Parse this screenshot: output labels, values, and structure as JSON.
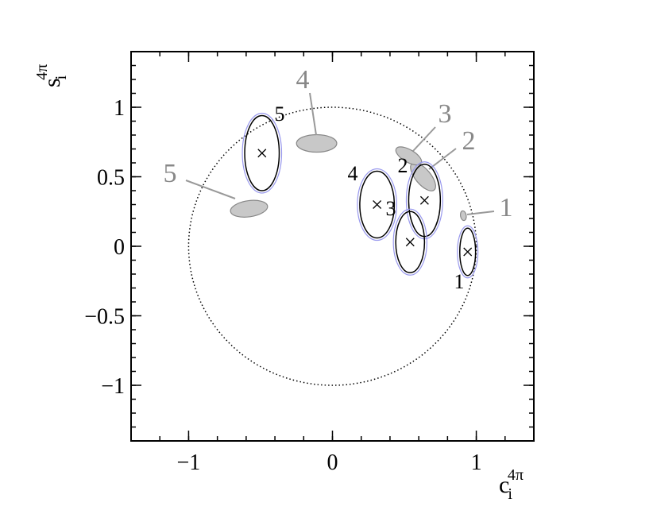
{
  "chart_data": {
    "type": "ellipse",
    "xlabel": {
      "base": "c",
      "sub": "i",
      "sup": "4π"
    },
    "ylabel": {
      "base": "s",
      "sub": "i",
      "sup": "4π"
    },
    "xlim": [
      -1.4,
      1.4
    ],
    "ylim": [
      -1.4,
      1.4
    ],
    "xticks": [
      {
        "value": -1,
        "label": "−1"
      },
      0,
      1
    ],
    "yticks": [
      {
        "value": -1,
        "label": "−1"
      },
      {
        "value": -0.5,
        "label": "−0.5"
      },
      0,
      0.5,
      1
    ],
    "xminor_step": 0.2,
    "yminor_step": 0.1,
    "circle_radius": 1,
    "measured": [
      {
        "label": "1",
        "x": 0.94,
        "y": -0.04,
        "rx": 0.055,
        "ry": 0.17
      },
      {
        "label": "2",
        "x": 0.64,
        "y": 0.33,
        "rx": 0.11,
        "ry": 0.26
      },
      {
        "label": "3",
        "x": 0.54,
        "y": 0.03,
        "rx": 0.1,
        "ry": 0.22
      },
      {
        "label": "4",
        "x": 0.31,
        "y": 0.3,
        "rx": 0.12,
        "ry": 0.24
      },
      {
        "label": "5",
        "x": -0.49,
        "y": 0.67,
        "rx": 0.12,
        "ry": 0.27
      }
    ],
    "predicted": [
      {
        "label": "1",
        "x": 0.91,
        "y": 0.22,
        "rx": 0.02,
        "ry": 0.035,
        "angle": 10
      },
      {
        "label": "2",
        "x": 0.63,
        "y": 0.5,
        "rx": 0.12,
        "ry": 0.055,
        "angle": -50
      },
      {
        "label": "3",
        "x": 0.53,
        "y": 0.65,
        "rx": 0.1,
        "ry": 0.045,
        "angle": -30
      },
      {
        "label": "4",
        "x": -0.11,
        "y": 0.74,
        "rx": 0.14,
        "ry": 0.063,
        "angle": 0
      },
      {
        "label": "5",
        "x": -0.58,
        "y": 0.27,
        "rx": 0.13,
        "ry": 0.058,
        "angle": 8
      }
    ]
  }
}
